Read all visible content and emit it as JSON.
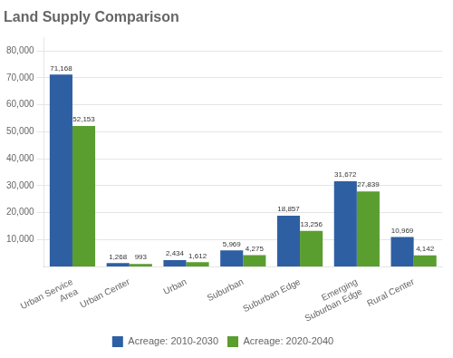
{
  "chart_data": {
    "type": "bar",
    "title": "Land Supply Comparison",
    "categories": [
      "Urban Service\nArea",
      "Urban Center",
      "Urban",
      "Suburban",
      "Suburban Edge",
      "Emerging\nSuburban Edge",
      "Rural Center"
    ],
    "series": [
      {
        "name": "Acreage: 2010-2030",
        "color": "#2e5fa3",
        "values": [
          71168,
          1268,
          2434,
          5969,
          18857,
          31672,
          10969
        ],
        "value_labels": [
          "71,168",
          "1,268",
          "2,434",
          "5,969",
          "18,857",
          "31,672",
          "10,969"
        ]
      },
      {
        "name": "Acreage: 2020-2040",
        "color": "#5a9e2f",
        "values": [
          52153,
          993,
          1612,
          4275,
          13256,
          27839,
          4142
        ],
        "value_labels": [
          "52,153",
          "993",
          "1,612",
          "4,275",
          "13,256",
          "27,839",
          "4,142"
        ]
      }
    ],
    "ylim": [
      0,
      85000
    ],
    "yticks": [
      {
        "value": 10000,
        "label": "10,000"
      },
      {
        "value": 20000,
        "label": "20,000"
      },
      {
        "value": 30000,
        "label": "30,000"
      },
      {
        "value": 40000,
        "label": "40,000"
      },
      {
        "value": 50000,
        "label": "50,000"
      },
      {
        "value": 60000,
        "label": "60,000"
      },
      {
        "value": 70000,
        "label": "70,000"
      },
      {
        "value": 80000,
        "label": "80,000"
      }
    ],
    "grid": true,
    "legend": "bottom",
    "data_labels": true
  }
}
